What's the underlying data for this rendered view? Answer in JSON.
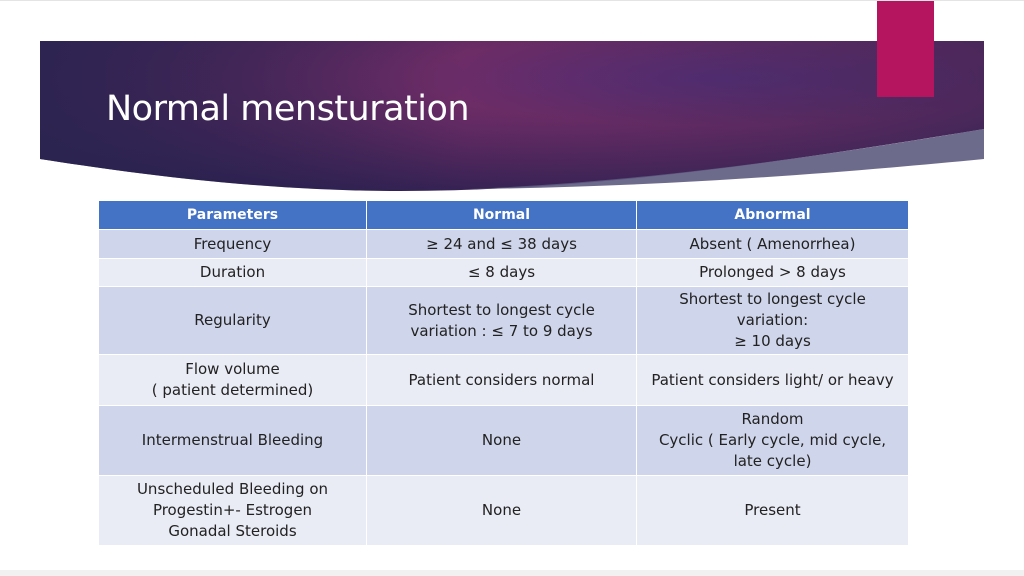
{
  "slide": {
    "title": "Normal mensturation"
  },
  "colors": {
    "banner_dark": "#2e2150",
    "banner_mid": "#6b2a63",
    "accent": "#b5145e",
    "table_header": "#4472c4",
    "row_dark": "#cfd5ea",
    "row_light": "#e9ebf5"
  },
  "table": {
    "headers": [
      "Parameters",
      "Normal",
      "Abnormal"
    ],
    "rows": [
      [
        "Frequency",
        "≥ 24   and   ≤ 38 days",
        "Absent ( Amenorrhea)"
      ],
      [
        "Duration",
        "≤ 8 days",
        "Prolonged > 8 days"
      ],
      [
        "Regularity",
        "Shortest to longest cycle\nvariation : ≤ 7 to 9 days",
        "Shortest to longest cycle\nvariation:\n≥ 10 days"
      ],
      [
        "Flow volume\n( patient determined)",
        "Patient considers normal",
        "Patient considers light/ or heavy"
      ],
      [
        "Intermenstrual Bleeding",
        "None",
        "Random\nCyclic ( Early cycle, mid cycle,\nlate cycle)"
      ],
      [
        "Unscheduled Bleeding on\nProgestin+- Estrogen\nGonadal Steroids",
        "None",
        "Present"
      ]
    ]
  }
}
